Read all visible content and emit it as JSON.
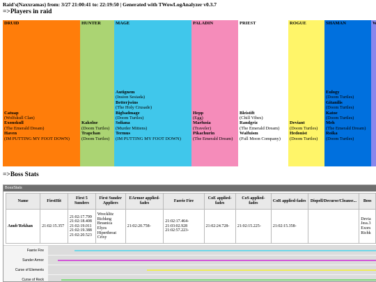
{
  "header": {
    "raid_title": "Raid's(Naxxramas) from: 3/27 21:00:41 to: 22:19:50 | Generated with TWowLogAnalyzer v0.3.7",
    "players_heading": "=>Players in raid",
    "boss_heading": "=>Boss Stats"
  },
  "classes": [
    {
      "name": "DRUID",
      "color": "#ff7d0a",
      "players": [
        {
          "name": "Catuap",
          "guild": "(Wolfskull Clan)"
        },
        {
          "name": "Exonskull",
          "guild": "(The Emerald Dream)"
        },
        {
          "name": "Haven",
          "guild": "(IM PUTTING MY FOOT DOWN)"
        }
      ]
    },
    {
      "name": "HUNTER",
      "color": "#abd473",
      "players": [
        {
          "name": "Kakolne",
          "guild": "(Doom Turtles)"
        },
        {
          "name": "Trapchan",
          "guild": "(Doom Turtles)"
        }
      ]
    },
    {
      "name": "MAGE",
      "color": "#40c7eb",
      "players": [
        {
          "name": "Autignem",
          "guild": "(Insion Sesiada)"
        },
        {
          "name": "Betterjwins",
          "guild": "(The Holy Crusade)"
        },
        {
          "name": "Bigbadmage",
          "guild": "(Doom Turtles)"
        },
        {
          "name": "Soliana",
          "guild": "(Murder Mittens)"
        },
        {
          "name": "Termus",
          "guild": "(IM PUTTING MY FOOT DOWN)"
        }
      ]
    },
    {
      "name": "PALADIN",
      "color": "#f58cba",
      "players": [
        {
          "name": "Hepp",
          "guild": "(Egg)"
        },
        {
          "name": "Marfusia",
          "guild": "(Traveler)"
        },
        {
          "name": "Pikachurin",
          "guild": "(The Emerald Dream)"
        }
      ]
    },
    {
      "name": "PRIEST",
      "color": "#ffffff",
      "players": [
        {
          "name": "Bleistift",
          "guild": "(Chill Vibes)"
        },
        {
          "name": "Randgriz",
          "guild": "(The Emerald Dream)"
        },
        {
          "name": "Waifuism",
          "guild": "(Full Moon Company)"
        }
      ]
    },
    {
      "name": "ROGUE",
      "color": "#fff569",
      "players": [
        {
          "name": "Deviant",
          "guild": "(Doom Turtles)"
        },
        {
          "name": "Hedonist",
          "guild": "(Doom Turtles)"
        }
      ]
    },
    {
      "name": "SHAMAN",
      "color": "#0070de",
      "players": [
        {
          "name": "Eulogy",
          "guild": "(Doom Turtles)"
        },
        {
          "name": "Gitanilis",
          "guild": "(Doom Turtles)"
        },
        {
          "name": "Katoe",
          "guild": "(Doom Turtles)"
        },
        {
          "name": "Meh",
          "guild": "(The Emerald Dream)"
        },
        {
          "name": "Roika",
          "guild": "(Doom Turtles)"
        }
      ]
    },
    {
      "name": "W",
      "color": "#8787ed",
      "players": []
    }
  ],
  "boss_stats": {
    "panel_title": "BossStats",
    "columns": [
      "Name",
      "FirstHit",
      "First 5 Sunders",
      "First Sunder Appliers",
      "EArmor applied-fades",
      "Faerie Fire",
      "CoE applied-fades",
      "CoS applied-fades",
      "CoR applied-fades",
      "Dispell/Decurse/Cleanse...",
      "Boss"
    ],
    "rows": [
      {
        "name": "Anub'Rekhan",
        "first_hit": "21:02:15.357",
        "first_5_sunders": [
          "21:02:17.799",
          "21:02:18.408",
          "21:02:19.011",
          "21:02:19.388",
          "21:02:20.523"
        ],
        "sunder_appliers": [
          "Wrecklitz",
          "Richkng",
          "Brusnica",
          "Elyzs",
          "Hiperthreat",
          "Crixy"
        ],
        "earmor": "21:02:20.758-",
        "faerie_fire": [
          "21:02:17.464-",
          "21:03:02.928",
          "21:02:57.223-"
        ],
        "coe": "21:02:24.728-",
        "cos": "21:02:15.225-",
        "cor": "21:02:15.358-",
        "dispell": "",
        "boss_list": [
          "Devia",
          "Jess.3",
          "Exors",
          "Richk"
        ]
      }
    ]
  },
  "timeline": {
    "rows": [
      {
        "label": "Faerie Fire",
        "color": "#6fd7e8",
        "start_fraction": 0.08
      },
      {
        "label": "Sunder Armor",
        "color": "#d356d8",
        "start_fraction": 0.03
      },
      {
        "label": "Curse of Elements",
        "color": "#f0ec58",
        "start_fraction": 0.3
      },
      {
        "label": "Curse of Reck",
        "color": "#7fd87a",
        "start_fraction": 0.04
      }
    ]
  }
}
